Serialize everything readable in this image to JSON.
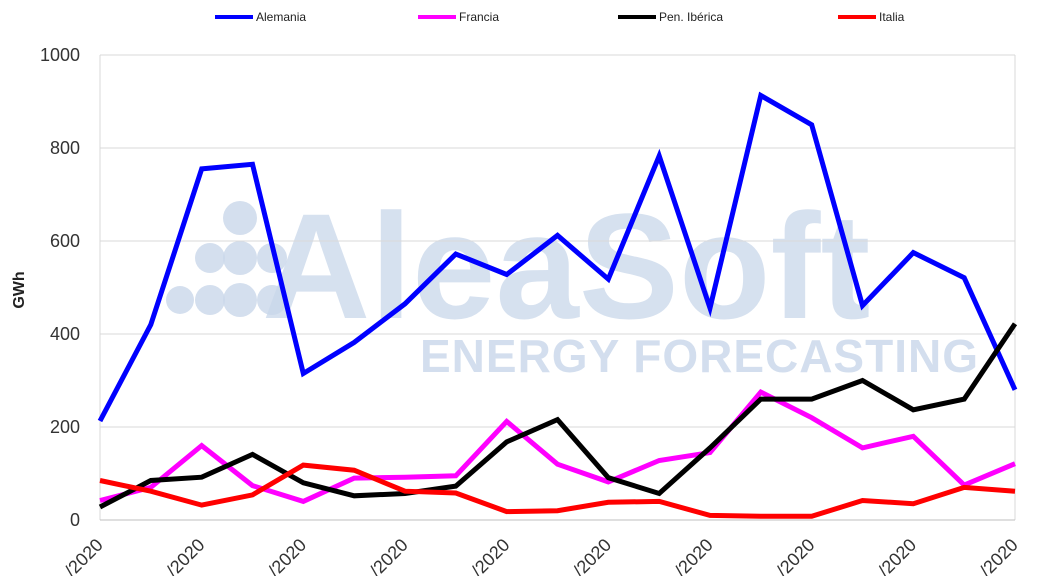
{
  "watermark": {
    "brand": "AleaSoft",
    "tagline": "ENERGY FORECASTING"
  },
  "chart_data": {
    "type": "line",
    "ylabel": "GWh",
    "xlabel": "",
    "ylim": [
      0,
      1000
    ],
    "yticks": [
      0,
      200,
      400,
      600,
      800,
      1000
    ],
    "grid": true,
    "legend_position": "top",
    "x_tick_labels": [
      "/2020",
      "/2020",
      "/2020",
      "/2020",
      "/2020",
      "/2020",
      "/2020",
      "/2020",
      "/2020",
      "/2020"
    ],
    "x_count": 19,
    "series": [
      {
        "name": "Alemania",
        "color": "#0000ff",
        "values": [
          213,
          420,
          755,
          765,
          315,
          382,
          465,
          572,
          528,
          612,
          518,
          783,
          456,
          913,
          850,
          461,
          575,
          521,
          280
        ]
      },
      {
        "name": "Francia",
        "color": "#ff00ff",
        "values": [
          42,
          70,
          160,
          74,
          40,
          90,
          92,
          95,
          212,
          120,
          82,
          128,
          145,
          275,
          220,
          155,
          180,
          75,
          121
        ]
      },
      {
        "name": "Pen. Ibérica",
        "color": "#000000",
        "values": [
          28,
          85,
          92,
          141,
          80,
          52,
          57,
          73,
          168,
          216,
          91,
          57,
          155,
          260,
          260,
          300,
          237,
          260,
          422
        ]
      },
      {
        "name": "Italia",
        "color": "#ff0000",
        "values": [
          85,
          62,
          32,
          54,
          118,
          107,
          62,
          58,
          18,
          20,
          38,
          40,
          10,
          8,
          8,
          42,
          35,
          70,
          62
        ]
      }
    ]
  }
}
